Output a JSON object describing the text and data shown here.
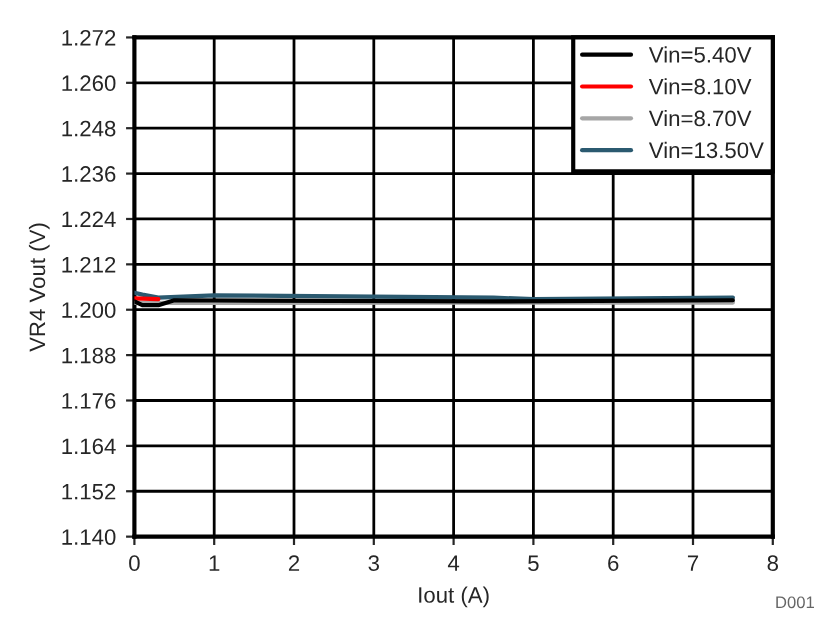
{
  "chart_data": {
    "type": "line",
    "xlabel": "Iout (A)",
    "ylabel": "VR4 Vout (V)",
    "xlim": [
      0,
      8
    ],
    "xticks": [
      0,
      1,
      2,
      3,
      4,
      5,
      6,
      7,
      8
    ],
    "ylim": [
      1.14,
      1.272
    ],
    "yticks": [
      {
        "value": 1.14,
        "label": "1.140"
      },
      {
        "value": 1.152,
        "label": "1.152"
      },
      {
        "value": 1.164,
        "label": "1.164"
      },
      {
        "value": 1.176,
        "label": "1.176"
      },
      {
        "value": 1.188,
        "label": "1.188"
      },
      {
        "value": 1.2,
        "label": "1.200"
      },
      {
        "value": 1.212,
        "label": "1.212"
      },
      {
        "value": 1.224,
        "label": "1.224"
      },
      {
        "value": 1.236,
        "label": "1.236"
      },
      {
        "value": 1.248,
        "label": "1.248"
      },
      {
        "value": 1.26,
        "label": "1.260"
      },
      {
        "value": 1.272,
        "label": "1.272"
      }
    ],
    "grid": true,
    "legend": "top right",
    "annotations": [
      "D001"
    ],
    "series": [
      {
        "name": "Vin=5.40V",
        "color": "#000000",
        "x": [
          0,
          0.1,
          0.3,
          0.5,
          4.5,
          7.5
        ],
        "values": [
          1.2022,
          1.2012,
          1.2012,
          1.2025,
          1.2022,
          1.2025
        ]
      },
      {
        "name": "Vin=8.10V",
        "color": "#ff0000",
        "x": [
          0,
          0.3
        ],
        "values": [
          1.203,
          1.2028
        ]
      },
      {
        "name": "Vin=8.70V",
        "color": "#a6a6a6",
        "x": [
          0,
          7.5
        ],
        "values": [
          1.2018,
          1.2019
        ]
      },
      {
        "name": "Vin=13.50V",
        "color": "#2b5a70",
        "x": [
          0,
          0.1,
          0.3,
          1,
          4.5,
          5,
          7.5
        ],
        "values": [
          1.2045,
          1.204,
          1.2032,
          1.2038,
          1.2032,
          1.2028,
          1.2032
        ]
      }
    ]
  }
}
